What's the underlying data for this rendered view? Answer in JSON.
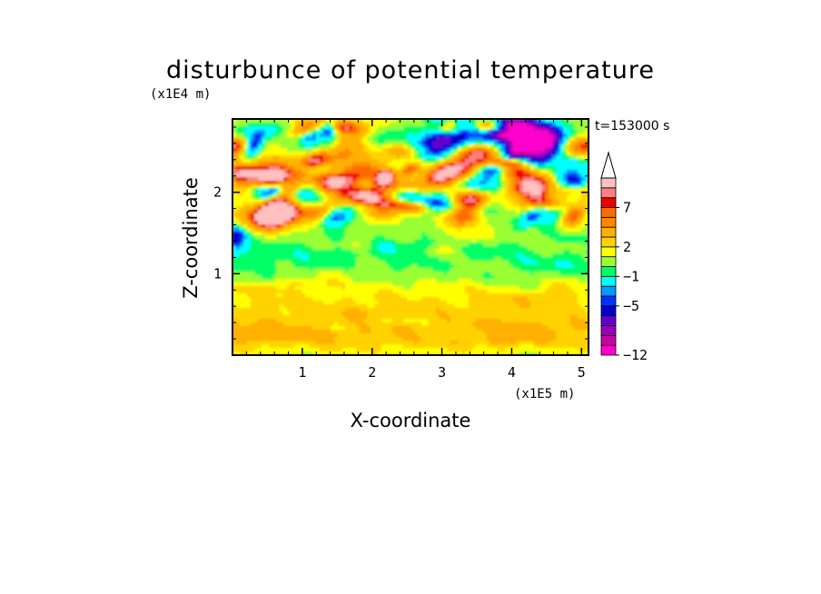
{
  "chart_data": {
    "type": "heatmap",
    "title": "disturbunce of potential temperature",
    "xlabel": "X-coordinate",
    "ylabel": "Z-coordinate",
    "x_unit": "(x1E5 m)",
    "y_unit": "(x1E4 m)",
    "time_label": "t=153000 s",
    "xlim": [
      0,
      5.1
    ],
    "ylim": [
      0,
      2.9
    ],
    "x_ticks": [
      1,
      2,
      3,
      4,
      5
    ],
    "y_ticks": [
      1,
      2
    ],
    "colorbar": {
      "levels": [
        -12,
        -11,
        -10,
        -9,
        -7,
        -5,
        -4,
        -3,
        -1,
        0,
        1,
        2,
        3,
        5,
        6,
        7,
        8,
        9,
        10
      ],
      "tick_labels": [
        {
          "value": -12,
          "label": "-12"
        },
        {
          "value": -5,
          "label": "-5"
        },
        {
          "value": -1,
          "label": "-1"
        },
        {
          "value": 2,
          "label": "2"
        },
        {
          "value": 7,
          "label": "7"
        }
      ],
      "colors": [
        "#ff00cc",
        "#cc00aa",
        "#9900bb",
        "#6600cc",
        "#0000cc",
        "#0033ff",
        "#0099ff",
        "#00ffff",
        "#00ff66",
        "#99ff33",
        "#ffff00",
        "#ffd200",
        "#ffb000",
        "#ff8800",
        "#ff6a00",
        "#ee0000",
        "#ff8080",
        "#ffc0c0"
      ],
      "extend": "max"
    },
    "field_description_levels": [
      {
        "z_range": [
          0.0,
          0.2
        ],
        "dominant": "yellow/orange"
      },
      {
        "z_range": [
          0.2,
          0.7
        ],
        "dominant": "orange/yellow"
      },
      {
        "z_range": [
          0.7,
          1.0
        ],
        "dominant": "yellow"
      },
      {
        "z_range": [
          1.0,
          1.4
        ],
        "dominant": "green/cyan"
      },
      {
        "z_range": [
          1.4,
          1.8
        ],
        "dominant": "green/yellow"
      },
      {
        "z_range": [
          1.8,
          2.9
        ],
        "dominant": "mixed orange/blue"
      }
    ]
  }
}
